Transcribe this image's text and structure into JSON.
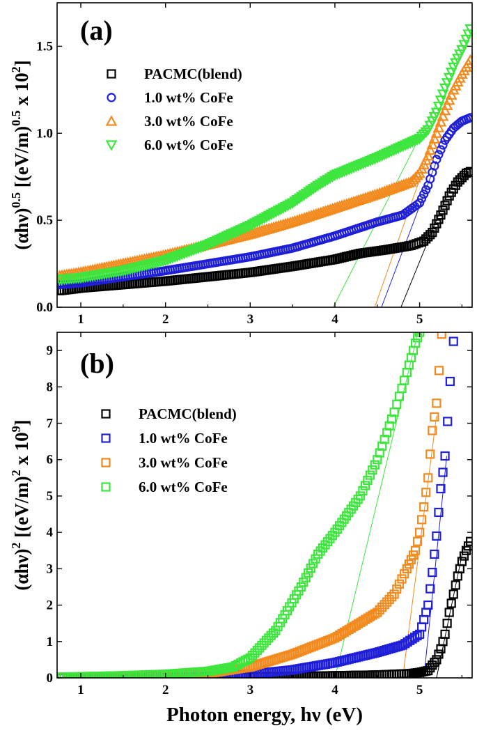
{
  "chart_data": [
    {
      "type": "scatter",
      "panel_label": "(a)",
      "ylabel_parts": [
        "(αhν)",
        "0.5",
        " [(eV/m)",
        "0.5",
        " x 10",
        "2",
        "]"
      ],
      "xlabel": "",
      "xlim": [
        0.72,
        5.62
      ],
      "ylim": [
        0.0,
        1.75
      ],
      "xticks": [
        1,
        2,
        3,
        4,
        5
      ],
      "xtick_labels": [
        "1",
        "2",
        "3",
        "4",
        "5"
      ],
      "yticks": [
        0.0,
        0.5,
        1.0,
        1.5
      ],
      "ytick_labels": [
        "0.0",
        "0.5",
        "1.0",
        "1.5"
      ],
      "legend_position": "top-left",
      "series": [
        {
          "name": "PACMC(blend)",
          "color": "#000000",
          "marker": "square",
          "x": [
            0.75,
            1.0,
            1.5,
            2.0,
            2.5,
            3.0,
            3.5,
            4.0,
            4.3,
            4.6,
            4.9,
            5.05,
            5.15,
            5.25,
            5.35,
            5.45,
            5.55,
            5.6
          ],
          "y": [
            0.095,
            0.11,
            0.13,
            0.15,
            0.175,
            0.2,
            0.235,
            0.275,
            0.31,
            0.33,
            0.355,
            0.38,
            0.43,
            0.53,
            0.64,
            0.72,
            0.77,
            0.78
          ],
          "fit_line": {
            "x": [
              4.78,
              5.3
            ],
            "y": [
              0.0,
              0.62
            ]
          }
        },
        {
          "name": "1.0 wt% CoFe",
          "color": "#1f1fd8",
          "marker": "circle",
          "x": [
            0.75,
            1.0,
            1.5,
            2.0,
            2.5,
            3.0,
            3.5,
            4.0,
            4.5,
            4.8,
            5.0,
            5.1,
            5.2,
            5.3,
            5.4,
            5.5,
            5.6
          ],
          "y": [
            0.13,
            0.14,
            0.175,
            0.21,
            0.25,
            0.29,
            0.34,
            0.41,
            0.49,
            0.53,
            0.6,
            0.7,
            0.85,
            0.96,
            1.03,
            1.07,
            1.09
          ],
          "fit_line": {
            "x": [
              4.55,
              5.2
            ],
            "y": [
              0.0,
              0.84
            ]
          }
        },
        {
          "name": "3.0 wt% CoFe",
          "color": "#f28a1e",
          "marker": "triangle-up",
          "x": [
            0.75,
            1.0,
            1.5,
            2.0,
            2.5,
            3.0,
            3.5,
            4.0,
            4.5,
            4.9,
            5.0,
            5.1,
            5.2,
            5.3,
            5.4,
            5.5,
            5.6
          ],
          "y": [
            0.18,
            0.2,
            0.25,
            0.3,
            0.36,
            0.42,
            0.49,
            0.57,
            0.65,
            0.72,
            0.77,
            0.87,
            1.0,
            1.13,
            1.25,
            1.34,
            1.42
          ],
          "fit_line": {
            "x": [
              4.47,
              5.25
            ],
            "y": [
              0.0,
              1.08
            ]
          }
        },
        {
          "name": "6.0 wt% CoFe",
          "color": "#3ce63c",
          "marker": "triangle-down",
          "x": [
            0.75,
            1.0,
            1.5,
            2.0,
            2.5,
            3.0,
            3.5,
            3.8,
            4.0,
            4.5,
            5.0,
            5.1,
            5.2,
            5.3,
            5.4,
            5.5,
            5.6
          ],
          "y": [
            0.16,
            0.17,
            0.21,
            0.27,
            0.36,
            0.47,
            0.6,
            0.7,
            0.76,
            0.86,
            0.97,
            1.02,
            1.12,
            1.26,
            1.38,
            1.48,
            1.6
          ],
          "fit_line": {
            "x": [
              3.98,
              5.2
            ],
            "y": [
              0.0,
              1.17
            ]
          }
        }
      ]
    },
    {
      "type": "scatter",
      "panel_label": "(b)",
      "ylabel_parts": [
        "(αhν)",
        "2",
        " [(eV/m)",
        "2",
        " x 10",
        "9",
        "]"
      ],
      "xlabel": "Photon energy, hν (eV)",
      "xlim": [
        0.72,
        5.62
      ],
      "ylim": [
        0.0,
        9.5
      ],
      "xticks": [
        1,
        2,
        3,
        4,
        5
      ],
      "xtick_labels": [
        "1",
        "2",
        "3",
        "4",
        "5"
      ],
      "yticks": [
        0,
        1,
        2,
        3,
        4,
        5,
        6,
        7,
        8,
        9
      ],
      "ytick_labels": [
        "0",
        "1",
        "2",
        "3",
        "4",
        "5",
        "6",
        "7",
        "8",
        "9"
      ],
      "legend_position": "top-left",
      "series": [
        {
          "name": "PACMC(blend)",
          "color": "#000000",
          "marker": "square",
          "x": [
            0.75,
            1.5,
            2.5,
            3.5,
            4.5,
            4.9,
            5.0,
            5.1,
            5.2,
            5.25,
            5.3,
            5.35,
            5.4,
            5.45,
            5.5,
            5.55,
            5.6
          ],
          "y": [
            0.0,
            0.0,
            0.02,
            0.04,
            0.08,
            0.12,
            0.15,
            0.2,
            0.5,
            0.8,
            1.2,
            1.8,
            2.3,
            2.8,
            3.2,
            3.5,
            3.75
          ],
          "fit_line": {
            "x": [
              5.2,
              5.52
            ],
            "y": [
              0.0,
              3.6
            ]
          }
        },
        {
          "name": "1.0 wt% CoFe",
          "color": "#1f1fd8",
          "marker": "square",
          "x": [
            0.75,
            1.5,
            2.5,
            3.0,
            3.5,
            4.0,
            4.5,
            4.8,
            5.0,
            5.1,
            5.15,
            5.2,
            5.25,
            5.3,
            5.33,
            5.36,
            5.4
          ],
          "y": [
            0.0,
            0.01,
            0.04,
            0.1,
            0.22,
            0.42,
            0.7,
            0.9,
            1.2,
            2.0,
            2.9,
            3.9,
            5.2,
            6.1,
            7.05,
            8.15,
            9.25
          ],
          "fit_line": {
            "x": [
              5.05,
              5.32
            ],
            "y": [
              0.0,
              6.1
            ]
          }
        },
        {
          "name": "3.0 wt% CoFe",
          "color": "#f28a1e",
          "marker": "square",
          "x": [
            0.75,
            1.5,
            2.5,
            3.0,
            3.5,
            4.0,
            4.5,
            4.7,
            4.85,
            4.95,
            5.0,
            5.05,
            5.1,
            5.15,
            5.2,
            5.23,
            5.26
          ],
          "y": [
            0.01,
            0.03,
            0.12,
            0.3,
            0.65,
            1.1,
            1.8,
            2.3,
            3.0,
            3.5,
            4.0,
            4.7,
            5.5,
            6.8,
            7.55,
            8.45,
            9.45
          ],
          "fit_line": {
            "x": [
              4.8,
              5.2
            ],
            "y": [
              0.0,
              7.2
            ]
          }
        },
        {
          "name": "6.0 wt% CoFe",
          "color": "#3ce63c",
          "marker": "square",
          "x": [
            0.75,
            1.5,
            2.0,
            2.5,
            2.8,
            3.0,
            3.3,
            3.6,
            3.8,
            4.0,
            4.3,
            4.5,
            4.7,
            4.85,
            4.95,
            5.0
          ],
          "y": [
            0.02,
            0.06,
            0.1,
            0.18,
            0.3,
            0.55,
            1.3,
            2.5,
            3.4,
            4.0,
            5.0,
            6.0,
            7.3,
            8.4,
            9.2,
            9.5
          ],
          "fit_line": {
            "x": [
              4.0,
              4.98
            ],
            "y": [
              0.0,
              9.5
            ]
          }
        }
      ]
    }
  ]
}
